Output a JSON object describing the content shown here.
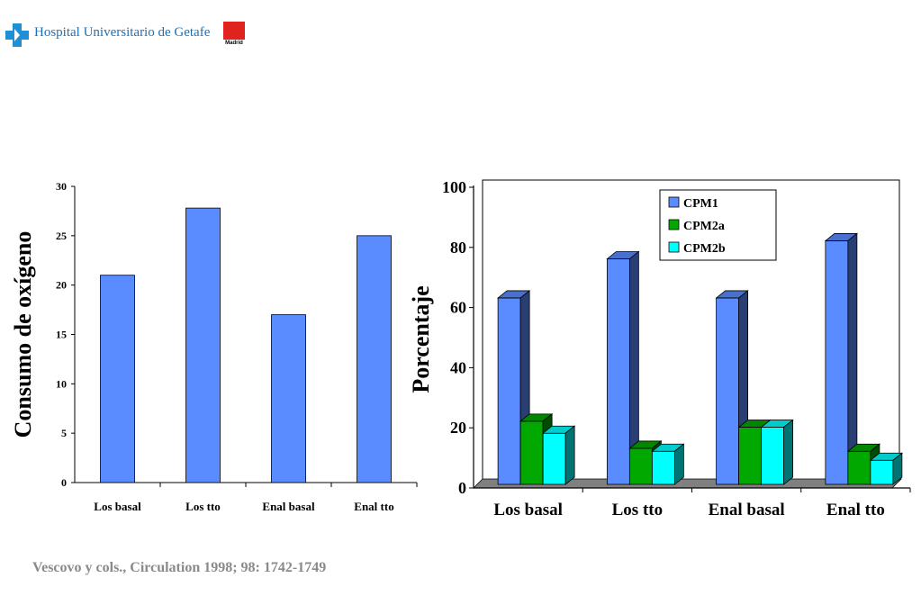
{
  "header": {
    "hospital_name": "Hospital Universitario de Getafe",
    "region_logo_text": "Madrid",
    "brand_color": "#1f6fb4",
    "region_color": "#e0231e"
  },
  "citation": "Vescovo y cols., Circulation 1998; 98: 1742-1749",
  "chart_data": [
    {
      "type": "bar",
      "ylabel": "Consumo de oxígeno",
      "categories": [
        "Los basal",
        "Los tto",
        "Enal basal",
        "Enal tto"
      ],
      "values": [
        21,
        27.8,
        17,
        25
      ],
      "ylim": [
        0,
        30
      ],
      "yticks": [
        0,
        5,
        10,
        15,
        20,
        25,
        30
      ],
      "bar_color": "#5b8cff",
      "grid": false,
      "legend": "none"
    },
    {
      "type": "bar",
      "style": "3d-clustered",
      "ylabel": "Porcentaje",
      "categories": [
        "Los basal",
        "Los tto",
        "Enal basal",
        "Enal tto"
      ],
      "series": [
        {
          "name": "CPM1",
          "values": [
            62,
            75,
            62,
            81
          ],
          "color": "#5b8cff"
        },
        {
          "name": "CPM2a",
          "values": [
            21,
            12,
            19,
            11
          ],
          "color": "#00a800"
        },
        {
          "name": "CPM2b",
          "values": [
            17,
            11,
            19,
            8
          ],
          "color": "#00ffff"
        }
      ],
      "ylim": [
        0,
        100
      ],
      "yticks": [
        0,
        20,
        40,
        60,
        80,
        100
      ],
      "grid": false,
      "legend": "top-right"
    }
  ]
}
